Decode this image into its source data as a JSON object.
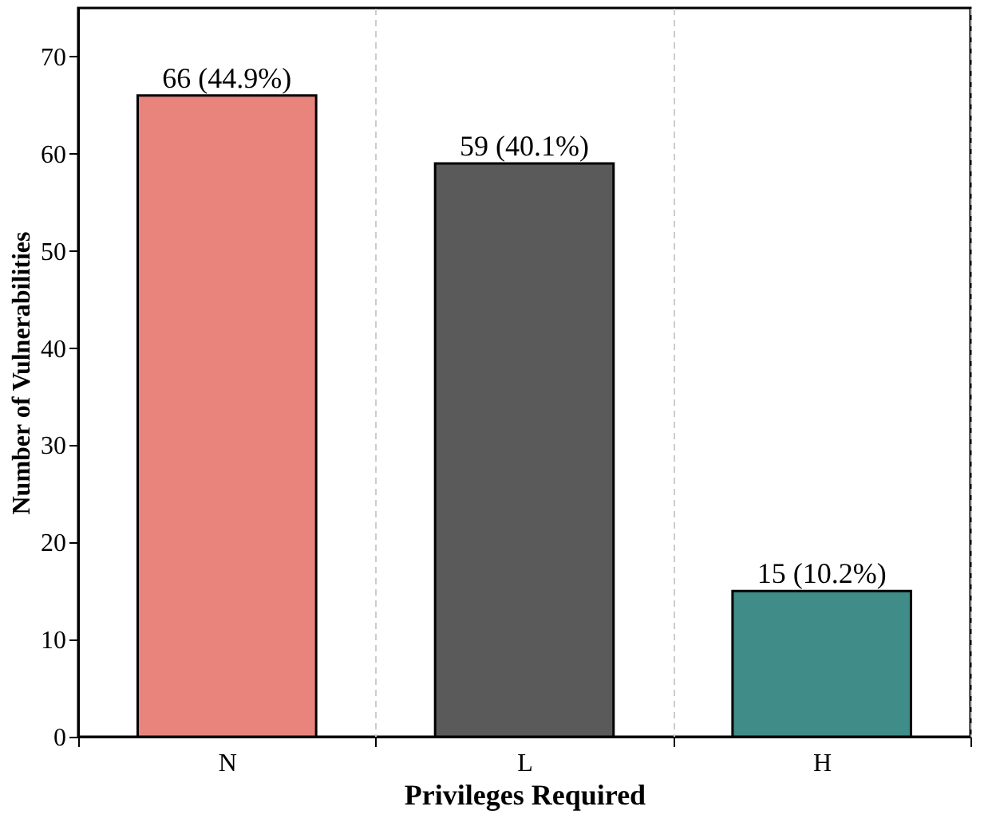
{
  "chart_data": {
    "type": "bar",
    "categories": [
      "N",
      "L",
      "H"
    ],
    "values": [
      66,
      59,
      15
    ],
    "value_labels": [
      "66 (44.9%)",
      "59 (40.1%)",
      "15 (10.2%)"
    ],
    "colors": [
      "#e8847c",
      "#5a5a5a",
      "#3f8c88"
    ],
    "xlabel": "Privileges Required",
    "ylabel": "Number of Vulnerabilities",
    "ylim": [
      0,
      75
    ],
    "yticks": [
      0,
      10,
      20,
      30,
      40,
      50,
      60,
      70
    ],
    "grid": "x",
    "legend": false
  }
}
